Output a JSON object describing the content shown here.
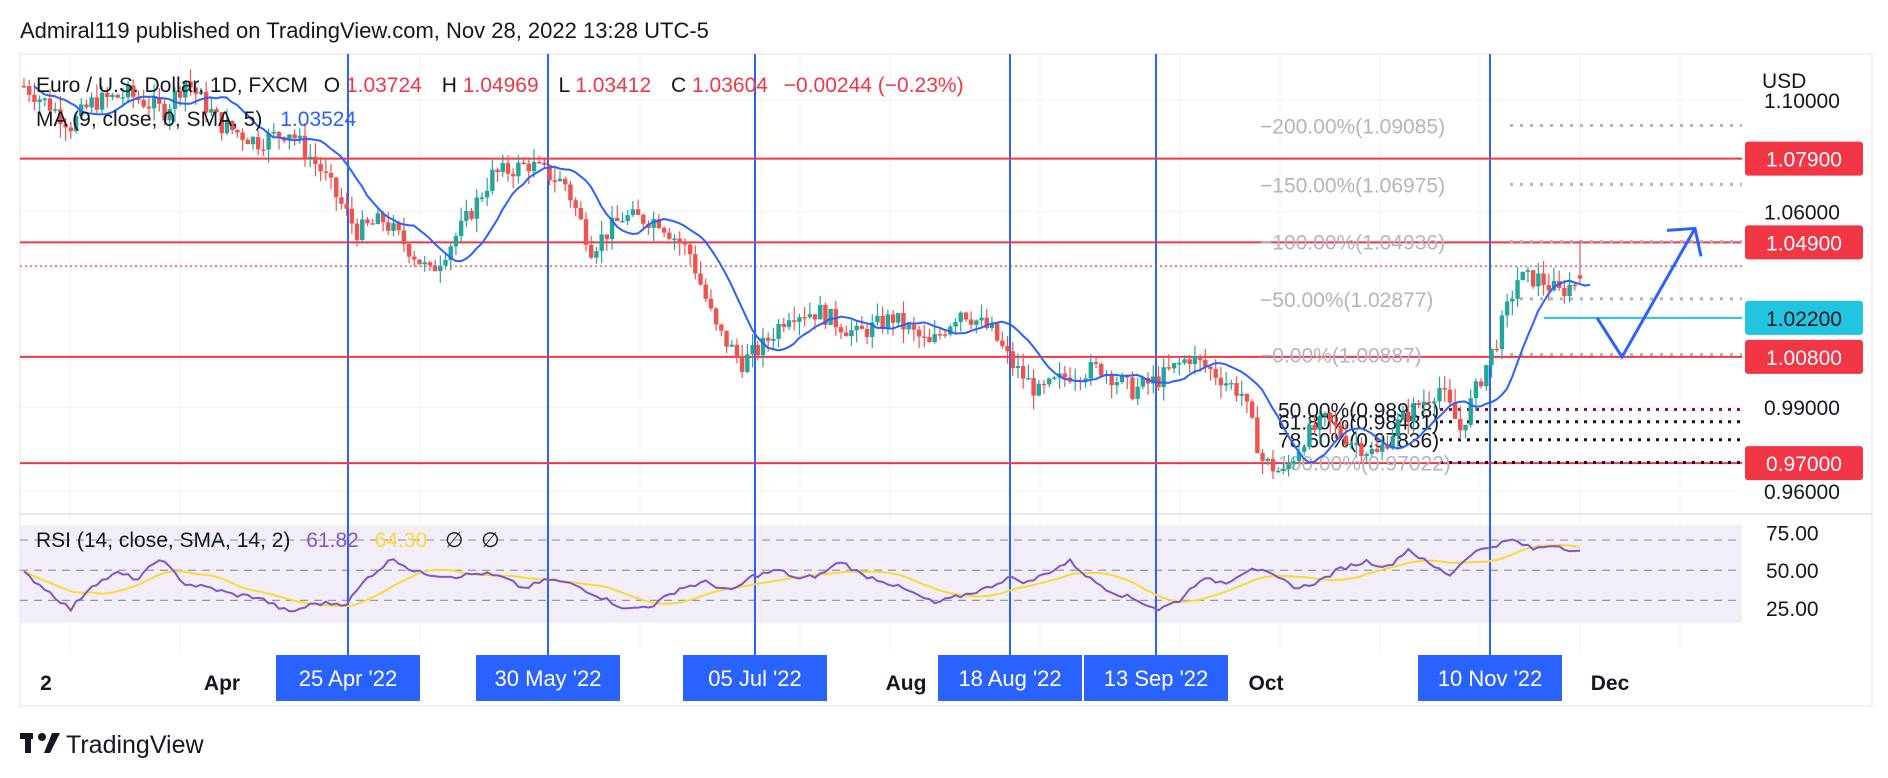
{
  "header": {
    "published": "Admiral119 published on TradingView.com, Nov 28, 2022 13:28 UTC-5"
  },
  "legend": {
    "symbol": "Euro / U.S. Dollar, 1D, FXCM",
    "o_label": "O",
    "o_value": "1.03724",
    "h_label": "H",
    "h_value": "1.04969",
    "l_label": "L",
    "l_value": "1.03412",
    "c_label": "C",
    "c_value": "1.03604",
    "change": "−0.00244 (−0.23%)",
    "ma_label": "MA (9, close, 0, SMA, 5)",
    "ma_value": "1.03524"
  },
  "rsi_legend": {
    "label": "RSI (14, close, SMA, 14, 2)",
    "value": "61.82",
    "sma_value": "64.30",
    "icon1": "∅",
    "icon2": "∅"
  },
  "price_axis": {
    "currency": "USD",
    "ticks": [
      "1.10000",
      "1.06000",
      "0.99000",
      "0.96000"
    ],
    "badges": [
      {
        "label": "1.07900",
        "price": 1.079,
        "color": "#f23645"
      },
      {
        "label": "1.04900",
        "price": 1.049,
        "color": "#f23645"
      },
      {
        "label": "1.02200",
        "price": 1.022,
        "color": "#22c5e0"
      },
      {
        "label": "1.00800",
        "price": 1.008,
        "color": "#f23645"
      },
      {
        "label": "0.97000",
        "price": 0.97,
        "color": "#f23645"
      }
    ]
  },
  "rsi_axis": {
    "ticks": [
      "75.00",
      "50.00",
      "25.00"
    ]
  },
  "time_axis": {
    "labels": [
      "2",
      "Apr",
      "Aug",
      "Oct",
      "Dec"
    ],
    "highlight_labels": [
      "25 Apr '22",
      "30 May '22",
      "05 Jul '22",
      "18 Aug '22",
      "13 Sep '22",
      "10 Nov '22"
    ]
  },
  "fib_upper": [
    {
      "label": "200.00%(1.09085)",
      "price": 1.09085
    },
    {
      "label": "150.00%(1.06975)",
      "price": 1.06975
    },
    {
      "label": "100.00%(1.04936)",
      "price": 1.04936
    },
    {
      "label": "50.00%(1.02877)",
      "price": 1.02877
    },
    {
      "label": "0.00%(1.00887)",
      "price": 1.00887
    }
  ],
  "fib_lower": [
    {
      "label": "50.00%(0.98918)",
      "price": 0.98918
    },
    {
      "label": "61.80%(0.98481)",
      "price": 0.98481
    },
    {
      "label": "78.60%(0.97836)",
      "price": 0.97836
    },
    {
      "label": "100.00%(0.97022)",
      "price": 0.97022
    }
  ],
  "footer": {
    "brand": "TradingView"
  },
  "colors": {
    "up": "#26a69a",
    "down": "#ef5350",
    "ma": "#2962ff",
    "rsi": "#7e57c2",
    "rsi_sma": "#fdd835",
    "level": "#f23645",
    "vline": "#2962ff"
  },
  "chart_data": {
    "type": "candlestick",
    "title": "Euro / U.S. Dollar, 1D, FXCM",
    "y_unit": "USD",
    "ylim": [
      0.955,
      1.115
    ],
    "horizontal_levels": [
      1.079,
      1.049,
      1.008,
      0.97
    ],
    "dotted_level": 1.0405,
    "marked_dates": [
      "25 Apr '22",
      "30 May '22",
      "05 Jul '22",
      "18 Aug '22",
      "13 Sep '22",
      "10 Nov '22"
    ],
    "last_candle": {
      "open": 1.03724,
      "high": 1.04969,
      "low": 1.03412,
      "close": 1.03604
    },
    "ma": {
      "params": "9, close, 0, SMA, 5",
      "last": 1.03524
    },
    "rsi": {
      "params": "14, close, SMA, 14, 2",
      "last": 61.82,
      "sma_last": 64.3,
      "levels": [
        70,
        50,
        30
      ],
      "ylim": [
        15,
        80
      ]
    },
    "price_path": [
      [
        0,
        1.105
      ],
      [
        5,
        1.098
      ],
      [
        9,
        1.091
      ],
      [
        13,
        1.099
      ],
      [
        20,
        1.102
      ],
      [
        27,
        1.096
      ],
      [
        31,
        1.107
      ],
      [
        38,
        1.091
      ],
      [
        45,
        1.085
      ],
      [
        51,
        1.089
      ],
      [
        57,
        1.075
      ],
      [
        64,
        1.053
      ],
      [
        69,
        1.057
      ],
      [
        73,
        1.049
      ],
      [
        78,
        1.038
      ],
      [
        84,
        1.054
      ],
      [
        90,
        1.073
      ],
      [
        97,
        1.077
      ],
      [
        104,
        1.07
      ],
      [
        109,
        1.047
      ],
      [
        115,
        1.058
      ],
      [
        122,
        1.057
      ],
      [
        128,
        1.045
      ],
      [
        133,
        1.018
      ],
      [
        138,
        1.006
      ],
      [
        142,
        1.012
      ],
      [
        147,
        1.024
      ],
      [
        153,
        1.024
      ],
      [
        160,
        1.016
      ],
      [
        167,
        1.022
      ],
      [
        174,
        1.012
      ],
      [
        180,
        1.025
      ],
      [
        186,
        1.017
      ],
      [
        190,
        1.005
      ],
      [
        195,
        0.995
      ],
      [
        201,
        1.002
      ],
      [
        207,
        1.004
      ],
      [
        213,
        0.996
      ],
      [
        218,
        1.0
      ],
      [
        224,
        1.008
      ],
      [
        229,
        1.002
      ],
      [
        234,
        0.995
      ],
      [
        238,
        0.971
      ],
      [
        242,
        0.966
      ],
      [
        246,
        0.979
      ],
      [
        250,
        0.985
      ],
      [
        255,
        0.978
      ],
      [
        260,
        0.973
      ],
      [
        264,
        0.984
      ],
      [
        268,
        0.991
      ],
      [
        272,
        0.997
      ],
      [
        276,
        0.982
      ],
      [
        279,
        0.996
      ],
      [
        283,
        1.014
      ],
      [
        287,
        1.036
      ],
      [
        291,
        1.036
      ],
      [
        295,
        1.031
      ],
      [
        299,
        1.036
      ]
    ],
    "rsi_path": [
      [
        0,
        48
      ],
      [
        4,
        38
      ],
      [
        9,
        24
      ],
      [
        13,
        40
      ],
      [
        18,
        48
      ],
      [
        22,
        44
      ],
      [
        26,
        58
      ],
      [
        31,
        41
      ],
      [
        36,
        38
      ],
      [
        40,
        34
      ],
      [
        45,
        32
      ],
      [
        51,
        22
      ],
      [
        56,
        28
      ],
      [
        62,
        28
      ],
      [
        66,
        45
      ],
      [
        71,
        58
      ],
      [
        75,
        49
      ],
      [
        79,
        47
      ],
      [
        83,
        46
      ],
      [
        88,
        48
      ],
      [
        92,
        45
      ],
      [
        96,
        38
      ],
      [
        101,
        44
      ],
      [
        106,
        40
      ],
      [
        111,
        32
      ],
      [
        116,
        24
      ],
      [
        121,
        27
      ],
      [
        126,
        38
      ],
      [
        131,
        42
      ],
      [
        136,
        36
      ],
      [
        140,
        46
      ],
      [
        145,
        50
      ],
      [
        149,
        44
      ],
      [
        153,
        47
      ],
      [
        157,
        56
      ],
      [
        161,
        47
      ],
      [
        165,
        43
      ],
      [
        170,
        36
      ],
      [
        175,
        28
      ],
      [
        180,
        33
      ],
      [
        185,
        38
      ],
      [
        189,
        45
      ],
      [
        193,
        42
      ],
      [
        197,
        49
      ],
      [
        201,
        56
      ],
      [
        205,
        44
      ],
      [
        209,
        36
      ],
      [
        214,
        30
      ],
      [
        218,
        24
      ],
      [
        222,
        30
      ],
      [
        226,
        44
      ],
      [
        231,
        42
      ],
      [
        236,
        52
      ],
      [
        240,
        46
      ],
      [
        245,
        38
      ],
      [
        249,
        43
      ],
      [
        253,
        51
      ],
      [
        258,
        56
      ],
      [
        262,
        52
      ],
      [
        266,
        64
      ],
      [
        270,
        54
      ],
      [
        274,
        47
      ],
      [
        278,
        61
      ],
      [
        282,
        66
      ],
      [
        286,
        70
      ],
      [
        290,
        64
      ],
      [
        294,
        67
      ],
      [
        299,
        62
      ]
    ],
    "projection": {
      "points": [
        [
          1.022,
          0
        ],
        [
          1.008,
          1
        ],
        [
          1.054,
          2
        ]
      ],
      "note": ""
    }
  }
}
